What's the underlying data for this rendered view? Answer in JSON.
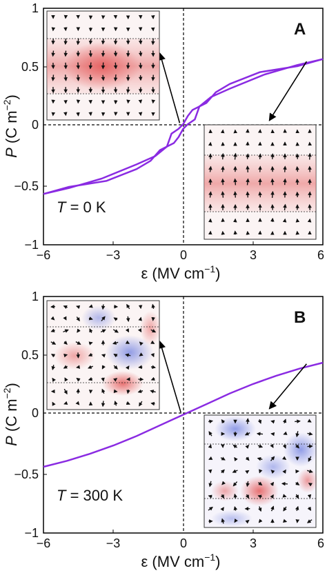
{
  "chart_data": [
    {
      "type": "line",
      "panel_label": "A",
      "temperature_label": {
        "symbol": "T",
        "value": " = 0 K"
      },
      "xlabel": {
        "symbol": "ε",
        "units": " (MV cm",
        "exp": "−1",
        "close": ")"
      },
      "ylabel": {
        "symbol": "P",
        "units": " (C m",
        "exp": "−2",
        "close": ")"
      },
      "xlim": [
        -6,
        6
      ],
      "ylim": [
        -1,
        1
      ],
      "xticks": [
        "−6",
        "−3",
        "0",
        "3",
        "6"
      ],
      "yticks": [
        "−1",
        "−0.5",
        "0",
        "0.5",
        "1"
      ],
      "series": [
        {
          "color": "#8a2be2",
          "x": [
            -6,
            -4.9,
            -3.5,
            -2.0,
            -1.2,
            -0.7,
            -0.5,
            -0.2,
            0.0,
            0.2,
            0.4,
            1.0,
            1.4,
            2.0,
            3.3,
            4.9,
            6
          ],
          "y": [
            -0.57,
            -0.52,
            -0.44,
            -0.32,
            -0.25,
            -0.17,
            -0.06,
            -0.02,
            0.02,
            0.09,
            0.14,
            0.2,
            0.29,
            0.36,
            0.46,
            0.51,
            0.57
          ]
        },
        {
          "color": "#8a2be2",
          "x": [
            -6,
            -4.9,
            -3.3,
            -2.0,
            -1.4,
            -1.0,
            -0.4,
            -0.2,
            0.0,
            0.2,
            0.5,
            0.7,
            1.2,
            2.0,
            3.5,
            4.9,
            6
          ],
          "y": [
            -0.57,
            -0.51,
            -0.46,
            -0.36,
            -0.29,
            -0.2,
            -0.14,
            -0.09,
            -0.02,
            0.02,
            0.06,
            0.17,
            0.25,
            0.32,
            0.44,
            0.52,
            0.57
          ]
        }
      ],
      "annotations": [
        {
          "from": [
            -0.15,
            0.03
          ],
          "to": [
            -1.0,
            0.62
          ]
        },
        {
          "from": [
            5.3,
            0.55
          ],
          "to": [
            3.7,
            0.05
          ]
        }
      ]
    },
    {
      "type": "line",
      "panel_label": "B",
      "temperature_label": {
        "symbol": "T",
        "value": " = 300 K"
      },
      "xlabel": {
        "symbol": "ε",
        "units": " (MV cm",
        "exp": "−1",
        "close": ")"
      },
      "ylabel": {
        "symbol": "P",
        "units": " (C m",
        "exp": "−2",
        "close": ")"
      },
      "xlim": [
        -6,
        6
      ],
      "ylim": [
        -1,
        1
      ],
      "xticks": [
        "−6",
        "−3",
        "0",
        "3",
        "6"
      ],
      "yticks": [
        "−1",
        "−0.5",
        "0",
        "0.5",
        "1"
      ],
      "series": [
        {
          "color": "#8a2be2",
          "x": [
            -6,
            -5,
            -4,
            -3,
            -2,
            -1,
            0,
            1,
            2,
            3,
            4,
            5,
            6
          ],
          "y": [
            -0.44,
            -0.39,
            -0.33,
            -0.26,
            -0.18,
            -0.09,
            0.0,
            0.09,
            0.18,
            0.26,
            0.33,
            0.39,
            0.44
          ]
        }
      ],
      "annotations": [
        {
          "from": [
            -0.1,
            0.02
          ],
          "to": [
            -1.0,
            0.62
          ]
        },
        {
          "from": [
            5.3,
            0.43
          ],
          "to": [
            3.7,
            0.05
          ]
        }
      ]
    }
  ],
  "insets": [
    {
      "panel": "A",
      "position": "upper-left",
      "pattern": "ordered-lower"
    },
    {
      "panel": "A",
      "position": "lower-right",
      "pattern": "ordered-upper"
    },
    {
      "panel": "B",
      "position": "upper-left",
      "pattern": "disordered"
    },
    {
      "panel": "B",
      "position": "lower-right",
      "pattern": "disordered"
    }
  ]
}
